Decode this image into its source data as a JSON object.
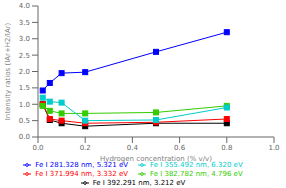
{
  "chart_data": {
    "type": "line",
    "x": [
      0.02,
      0.05,
      0.1,
      0.2,
      0.5,
      0.8
    ],
    "series": [
      {
        "name": "Fe I 392.291 nm, 3.212 eV",
        "color": "#000000",
        "marker": "square",
        "values": [
          1.0,
          0.52,
          0.42,
          0.33,
          0.42,
          0.42
        ]
      },
      {
        "name": "Fe I 371.994 nm, 3.332 eV",
        "color": "#ff0000",
        "marker": "square",
        "values": [
          1.0,
          0.55,
          0.5,
          0.42,
          0.45,
          0.55
        ]
      },
      {
        "name": "Fe I 382.782 nm, 4.796 eV",
        "color": "#33cc00",
        "marker": "square",
        "values": [
          0.95,
          0.8,
          0.72,
          0.72,
          0.75,
          0.95
        ]
      },
      {
        "name": "Fe I 281.328 nm, 5.321 eV",
        "color": "#0000ff",
        "marker": "square",
        "values": [
          1.42,
          1.65,
          1.95,
          1.98,
          2.6,
          3.2
        ]
      },
      {
        "name": "Fe I 355.492 nm, 6.320 eV",
        "color": "#00cccc",
        "marker": "square",
        "values": [
          1.2,
          1.08,
          1.05,
          0.5,
          0.52,
          0.9
        ]
      }
    ],
    "x_label": "Hydrogen concentration (% v/v)",
    "y_label": "Intensity ratios (IAr+H2/IAr)",
    "xlim": [
      0.0,
      1.0
    ],
    "ylim": [
      0.0,
      4.0
    ],
    "xticks": [
      {
        "value": 0.0,
        "label": "0.0"
      },
      0.2,
      0.4,
      0.6,
      0.8,
      {
        "value": 1.0,
        "label": "1.0"
      }
    ],
    "yticks": [
      {
        "value": 0.0,
        "label": "0.0"
      },
      0.5,
      {
        "value": 1.0,
        "label": "1.0"
      },
      1.5,
      {
        "value": 2.0,
        "label": "2.0"
      },
      2.5,
      {
        "value": 3.0,
        "label": "3.0"
      },
      3.5,
      {
        "value": 4.0,
        "label": "4.0"
      }
    ],
    "grid": false,
    "legend": "bottom"
  }
}
